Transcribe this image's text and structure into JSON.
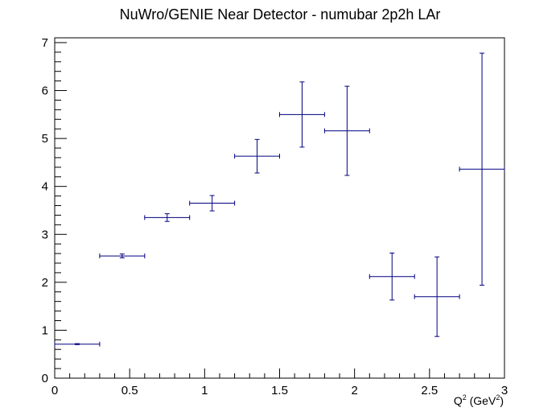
{
  "chart_data": {
    "type": "scatter",
    "title": "NuWro/GENIE Near Detector - numubar 2p2h LAr",
    "xlabel": {
      "base": "Q",
      "sup1": "2",
      "mid": " (GeV",
      "sup2": "2",
      "end": ")"
    },
    "ylabel": "",
    "xlim": [
      0,
      3
    ],
    "ylim": [
      0,
      7.1
    ],
    "x_ticks": [
      "0",
      "0.5",
      "1",
      "1.5",
      "2",
      "2.5",
      "3"
    ],
    "y_ticks": [
      "0",
      "1",
      "2",
      "3",
      "4",
      "5",
      "6",
      "7"
    ],
    "grid": false,
    "legend": "none",
    "colors": {
      "series": "#000080",
      "axis": "#000000"
    },
    "series": [
      {
        "points": [
          {
            "x": 0.15,
            "xerr": 0.15,
            "y": 0.71,
            "yerr": 0.01
          },
          {
            "x": 0.45,
            "xerr": 0.15,
            "y": 2.55,
            "yerr": 0.04
          },
          {
            "x": 0.75,
            "xerr": 0.15,
            "y": 3.35,
            "yerr": 0.08
          },
          {
            "x": 1.05,
            "xerr": 0.15,
            "y": 3.65,
            "yerr": 0.16
          },
          {
            "x": 1.35,
            "xerr": 0.15,
            "y": 4.63,
            "yerr": 0.35
          },
          {
            "x": 1.65,
            "xerr": 0.15,
            "y": 5.5,
            "yerr": 0.68
          },
          {
            "x": 1.95,
            "xerr": 0.15,
            "y": 5.16,
            "yerr": 0.93
          },
          {
            "x": 2.25,
            "xerr": 0.15,
            "y": 2.12,
            "yerr": 0.49
          },
          {
            "x": 2.55,
            "xerr": 0.15,
            "y": 1.7,
            "yerr": 0.83
          },
          {
            "x": 2.85,
            "xerr": 0.15,
            "y": 4.36,
            "yerr": 2.42
          }
        ]
      }
    ]
  }
}
